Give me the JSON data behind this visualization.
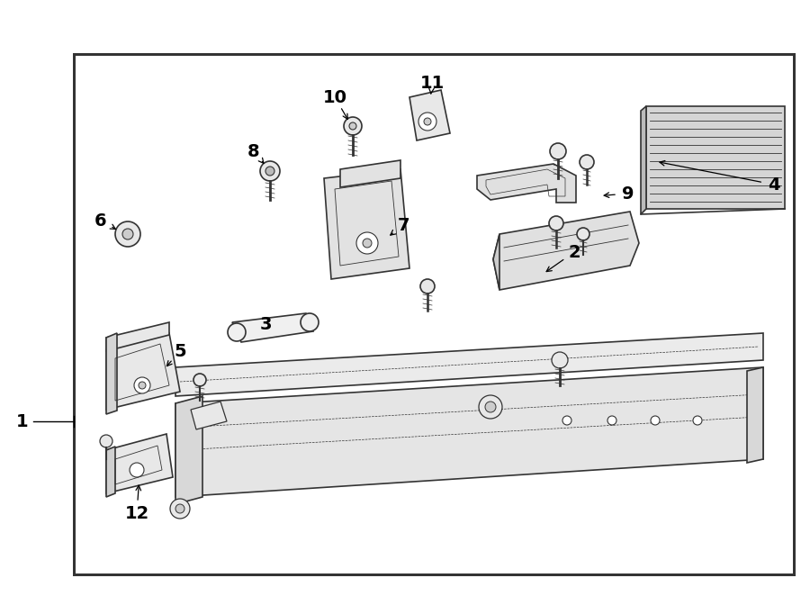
{
  "background_color": "#ffffff",
  "border_color": "#333333",
  "line_color": "#333333",
  "font_size": 14
}
